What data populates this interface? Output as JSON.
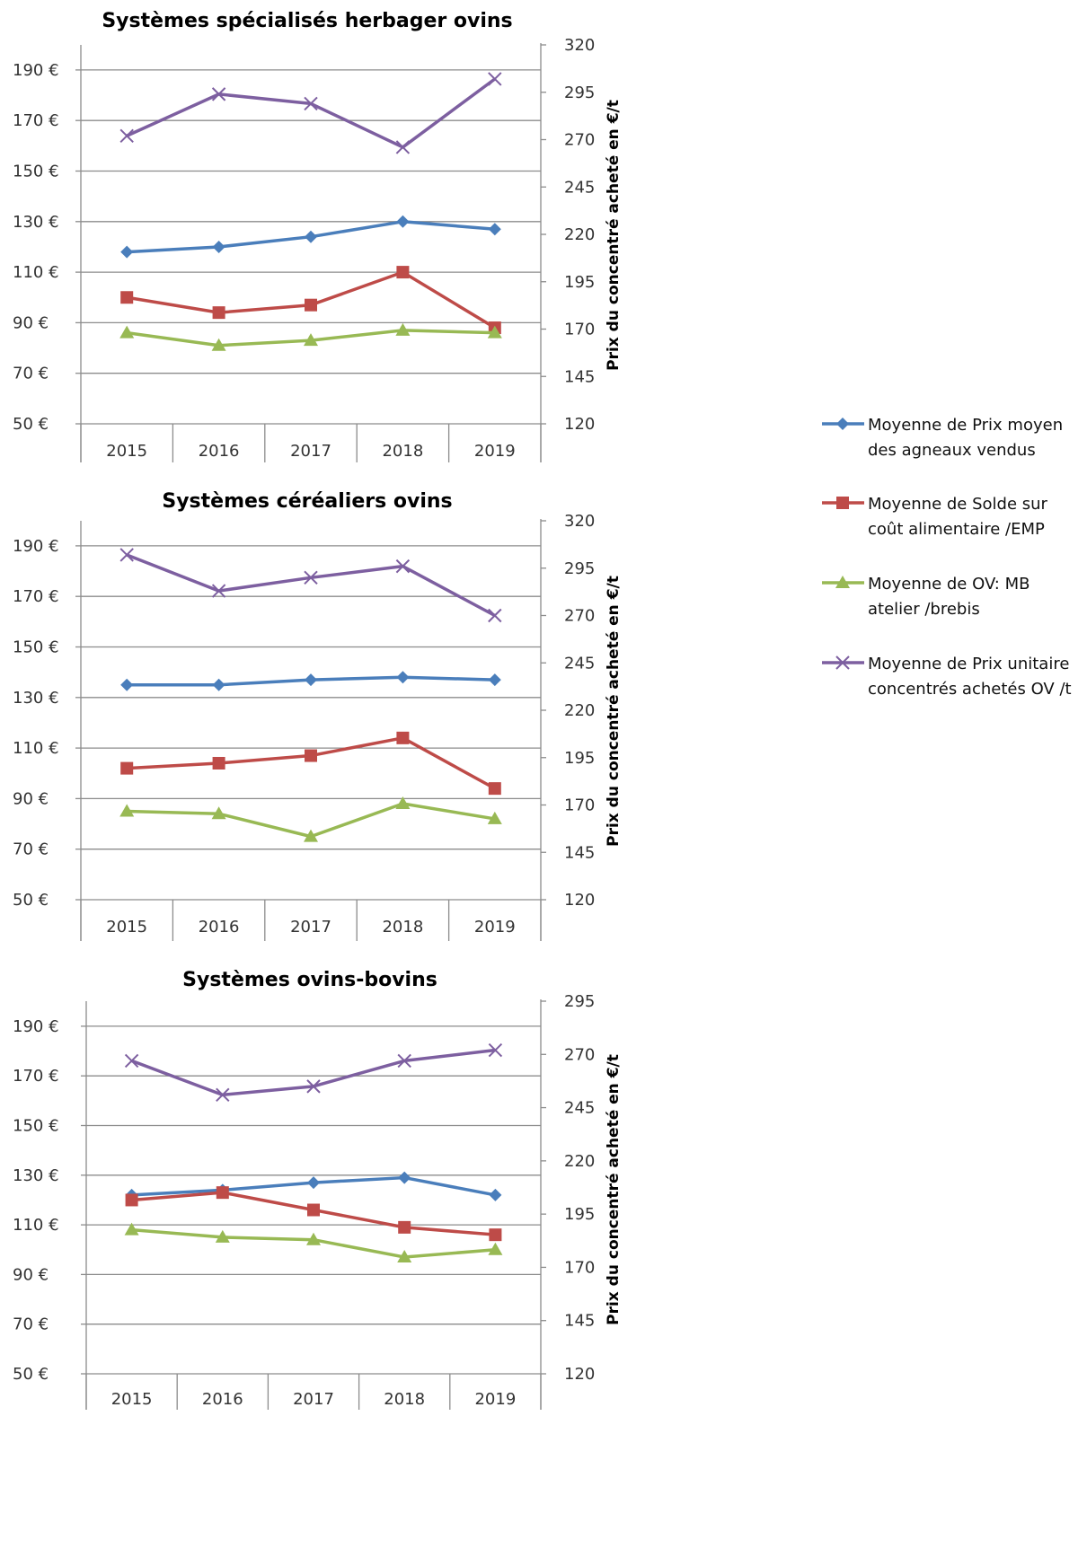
{
  "chart_data": [
    {
      "type": "line",
      "title": "Systèmes spécialisés herbager ovins",
      "categories": [
        "2015",
        "2016",
        "2017",
        "2018",
        "2019"
      ],
      "y_ticks": [
        "190 €",
        "170 €",
        "150 €",
        "130 €",
        "110 €",
        "90 €",
        "70 €",
        "50 €"
      ],
      "ylim": [
        50,
        200
      ],
      "y2_ticks": [
        "320",
        "295",
        "270",
        "245",
        "220",
        "195",
        "170",
        "145",
        "120"
      ],
      "y2lim": [
        120,
        320
      ],
      "y2label": "Prix du concentré acheté en €/t",
      "grid": true,
      "series": [
        {
          "name": "Moyenne de Prix moyen des agneaux vendus",
          "axis": "left",
          "color": "#4a7ebb",
          "marker": "diamond",
          "values": [
            118,
            120,
            124,
            130,
            127
          ]
        },
        {
          "name": "Moyenne de Solde sur coût alimentaire /EMP",
          "axis": "left",
          "color": "#be4b48",
          "marker": "square",
          "values": [
            100,
            94,
            97,
            110,
            88
          ]
        },
        {
          "name": "Moyenne de OV: MB atelier /brebis",
          "axis": "left",
          "color": "#98b954",
          "marker": "triangle",
          "values": [
            86,
            81,
            83,
            87,
            86
          ]
        },
        {
          "name": "Moyenne de Prix unitaire concentrés achetés OV /t",
          "axis": "right",
          "color": "#7d5fa0",
          "marker": "x",
          "values": [
            272,
            294,
            289,
            266,
            302
          ]
        }
      ]
    },
    {
      "type": "line",
      "title": "Systèmes céréaliers ovins",
      "categories": [
        "2015",
        "2016",
        "2017",
        "2018",
        "2019"
      ],
      "y_ticks": [
        "190 €",
        "170 €",
        "150 €",
        "130 €",
        "110 €",
        "90 €",
        "70 €",
        "50 €"
      ],
      "ylim": [
        50,
        200
      ],
      "y2_ticks": [
        "320",
        "295",
        "270",
        "245",
        "220",
        "195",
        "170",
        "145",
        "120"
      ],
      "y2lim": [
        120,
        320
      ],
      "y2label": "Prix du concentré acheté en €/t",
      "grid": true,
      "series": [
        {
          "name": "Moyenne de Prix moyen des agneaux vendus",
          "axis": "left",
          "color": "#4a7ebb",
          "marker": "diamond",
          "values": [
            135,
            135,
            137,
            138,
            137
          ]
        },
        {
          "name": "Moyenne de Solde sur coût alimentaire /EMP",
          "axis": "left",
          "color": "#be4b48",
          "marker": "square",
          "values": [
            102,
            104,
            107,
            114,
            94
          ]
        },
        {
          "name": "Moyenne de OV: MB atelier /brebis",
          "axis": "left",
          "color": "#98b954",
          "marker": "triangle",
          "values": [
            85,
            84,
            75,
            88,
            82
          ]
        },
        {
          "name": "Moyenne de Prix unitaire concentrés achetés OV /t",
          "axis": "right",
          "color": "#7d5fa0",
          "marker": "x",
          "values": [
            302,
            283,
            290,
            296,
            270
          ]
        }
      ]
    },
    {
      "type": "line",
      "title": "Systèmes ovins-bovins",
      "categories": [
        "2015",
        "2016",
        "2017",
        "2018",
        "2019"
      ],
      "y_ticks": [
        "190 €",
        "170 €",
        "150 €",
        "130 €",
        "110 €",
        "90 €",
        "70 €",
        "50 €"
      ],
      "ylim": [
        50,
        195
      ],
      "y2_ticks": [
        "295",
        "270",
        "245",
        "220",
        "195",
        "170",
        "145",
        "120"
      ],
      "y2lim": [
        120,
        295
      ],
      "y2label": "Prix du concentré acheté en €/t",
      "grid": true,
      "series": [
        {
          "name": "Moyenne de Prix moyen des agneaux vendus",
          "axis": "left",
          "color": "#4a7ebb",
          "marker": "diamond",
          "values": [
            122,
            124,
            127,
            129,
            122
          ]
        },
        {
          "name": "Moyenne de Solde sur coût alimentaire /EMP",
          "axis": "left",
          "color": "#be4b48",
          "marker": "square",
          "values": [
            120,
            123,
            116,
            109,
            106
          ]
        },
        {
          "name": "Moyenne de OV: MB atelier /brebis",
          "axis": "left",
          "color": "#98b954",
          "marker": "triangle",
          "values": [
            108,
            105,
            104,
            97,
            100
          ]
        },
        {
          "name": "Moyenne de Prix unitaire concentrés achetés OV /t",
          "axis": "right",
          "color": "#7d5fa0",
          "marker": "x",
          "values": [
            267,
            251,
            255,
            267,
            272
          ]
        }
      ]
    }
  ],
  "legend": {
    "position": "right",
    "items": [
      {
        "lines": [
          "Moyenne de Prix moyen",
          "des agneaux vendus"
        ],
        "color": "#4a7ebb",
        "marker": "diamond"
      },
      {
        "lines": [
          "Moyenne de Solde sur",
          "coût alimentaire /EMP"
        ],
        "color": "#be4b48",
        "marker": "square"
      },
      {
        "lines": [
          "Moyenne de OV: MB",
          "atelier /brebis"
        ],
        "color": "#98b954",
        "marker": "triangle"
      },
      {
        "lines": [
          "Moyenne de Prix unitaire",
          "concentrés achetés OV /t"
        ],
        "color": "#7d5fa0",
        "marker": "x"
      }
    ]
  }
}
